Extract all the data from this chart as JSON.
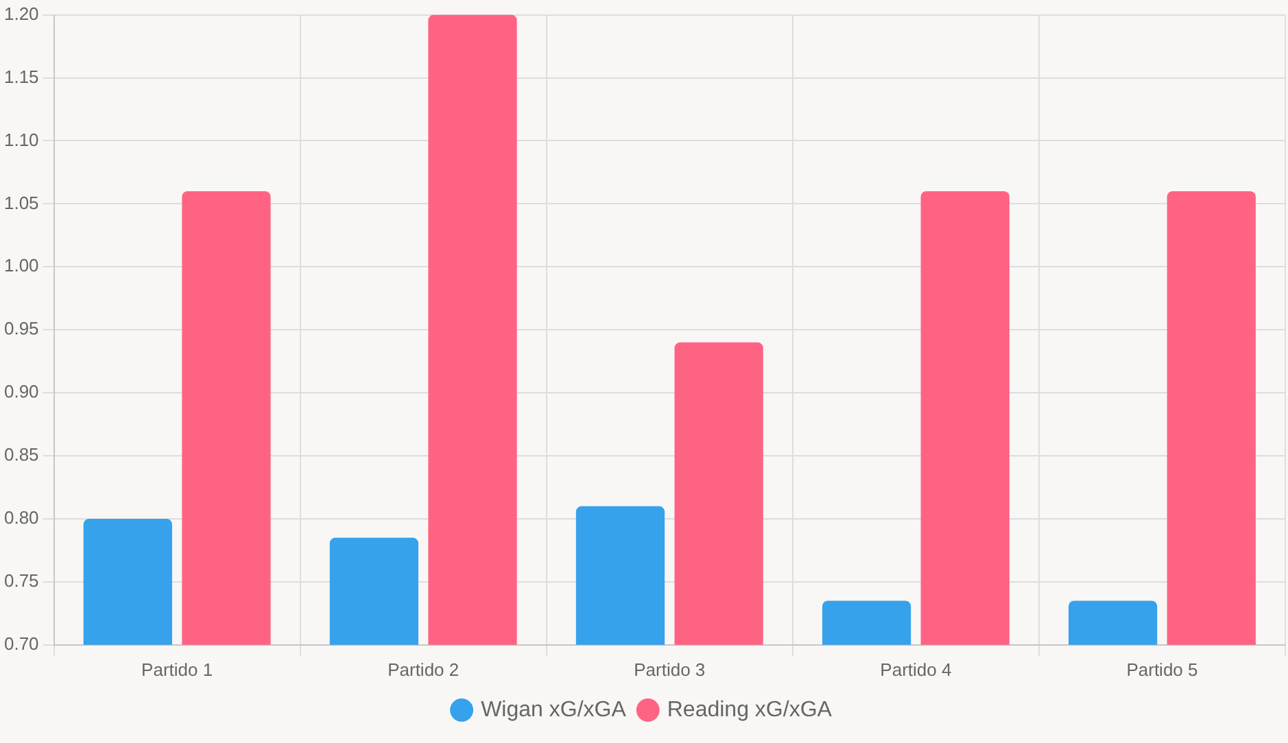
{
  "chart_data": {
    "type": "bar",
    "categories": [
      "Partido 1",
      "Partido 2",
      "Partido 3",
      "Partido 4",
      "Partido 5"
    ],
    "series": [
      {
        "name": "Wigan xG/xGA",
        "color": "#36a2eb",
        "values": [
          0.8,
          0.785,
          0.81,
          0.735,
          0.735
        ]
      },
      {
        "name": "Reading xG/xGA",
        "color": "#ff6384",
        "values": [
          1.06,
          1.2,
          0.94,
          1.06,
          1.06
        ]
      }
    ],
    "ylim": [
      0.7,
      1.2
    ],
    "yticks": [
      {
        "value": 0.7,
        "label": "0.70"
      },
      {
        "value": 0.75,
        "label": "0.75"
      },
      {
        "value": 0.8,
        "label": "0.80"
      },
      {
        "value": 0.85,
        "label": "0.85"
      },
      {
        "value": 0.9,
        "label": "0.90"
      },
      {
        "value": 0.95,
        "label": "0.95"
      },
      {
        "value": 1.0,
        "label": "1.00"
      },
      {
        "value": 1.05,
        "label": "1.05"
      },
      {
        "value": 1.1,
        "label": "1.10"
      },
      {
        "value": 1.15,
        "label": "1.15"
      },
      {
        "value": 1.2,
        "label": "1.20"
      }
    ],
    "grid": true,
    "legend": "bottom"
  }
}
